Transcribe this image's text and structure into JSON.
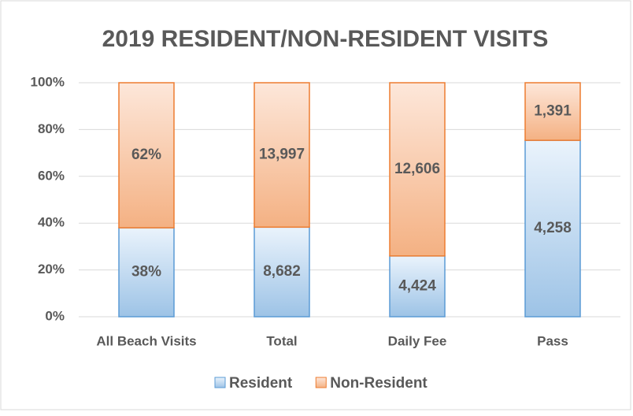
{
  "chart_data": {
    "type": "bar",
    "stacked": "percent",
    "title": "2019 RESIDENT/NON-RESIDENT VISITS",
    "categories": [
      "All Beach Visits",
      "Total",
      "Daily Fee",
      "Pass"
    ],
    "series": [
      {
        "name": "Resident",
        "color": "#9dc3e6",
        "border": "#5b9bd5",
        "values": [
          38,
          8682,
          4424,
          4258
        ],
        "value_labels": [
          "38%",
          "8,682",
          "4,424",
          "4,258"
        ]
      },
      {
        "name": "Non-Resident",
        "color": "#f4b183",
        "border": "#ed7d31",
        "values": [
          62,
          13997,
          12606,
          1391
        ],
        "value_labels": [
          "62%",
          "13,997",
          "12,606",
          "1,391"
        ]
      }
    ],
    "ylim": [
      0,
      100
    ],
    "yticks": [
      {
        "value": 0,
        "label": "0%"
      },
      {
        "value": 20,
        "label": "20%"
      },
      {
        "value": 40,
        "label": "40%"
      },
      {
        "value": 60,
        "label": "60%"
      },
      {
        "value": 80,
        "label": "80%"
      },
      {
        "value": 100,
        "label": "100%"
      }
    ],
    "grid": true,
    "legend": "bottom"
  }
}
